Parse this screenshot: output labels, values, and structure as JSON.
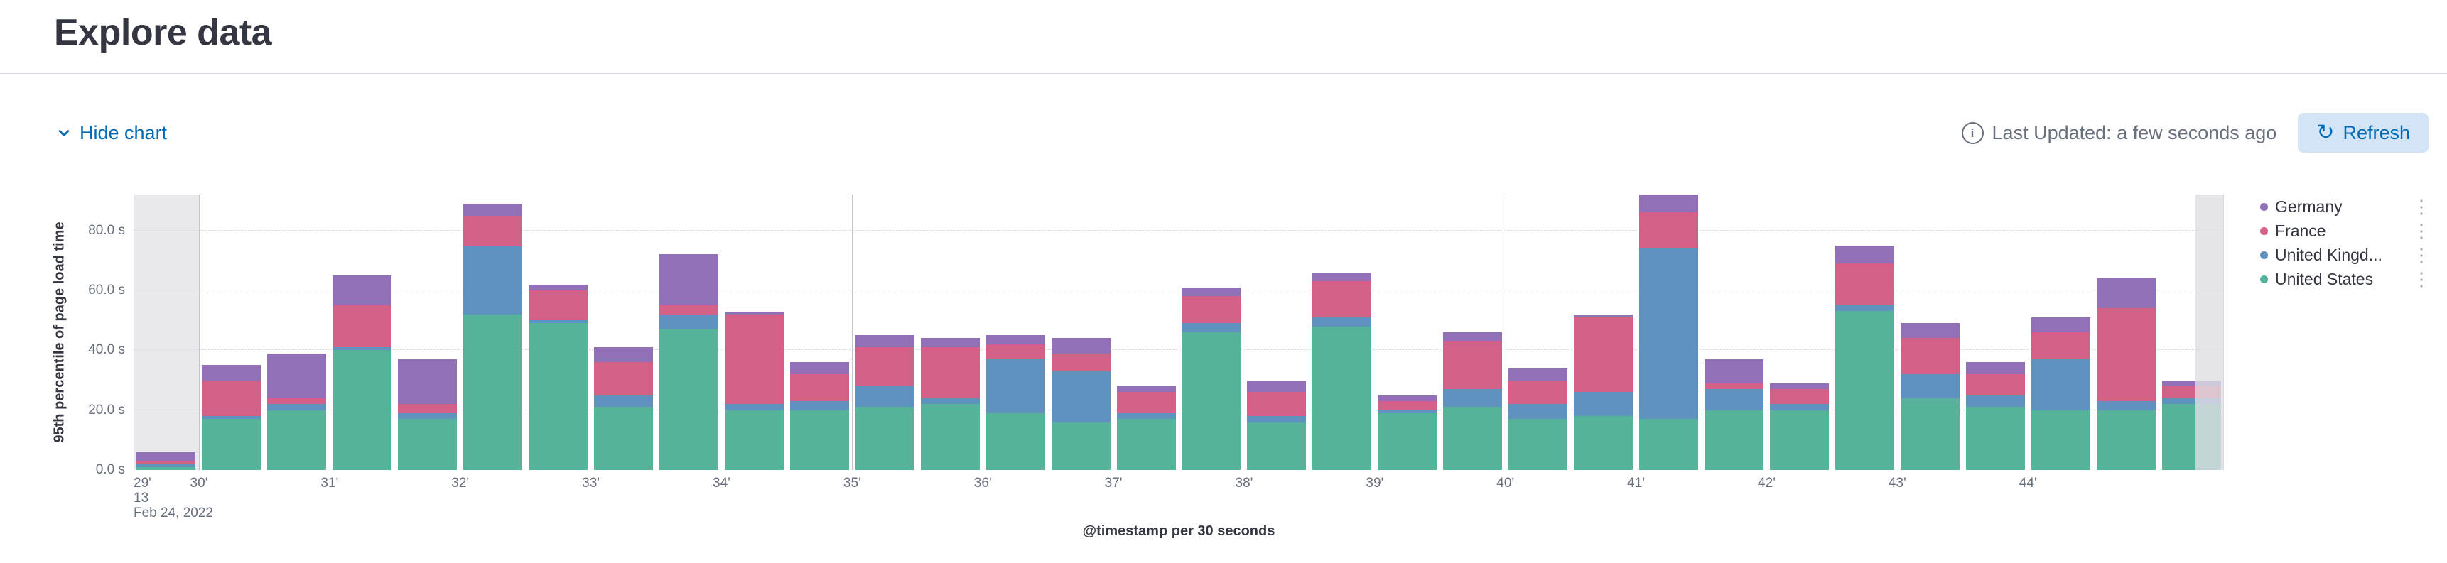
{
  "page": {
    "title": "Explore data"
  },
  "toolbar": {
    "hide_chart_label": "Hide chart",
    "last_updated": "Last Updated: a few seconds ago",
    "refresh_label": "Refresh"
  },
  "icons": {
    "chevron": "chevron-down-icon",
    "info": "info-icon",
    "refresh": "refresh-icon",
    "refresh_glyph": "↻",
    "legend_menu_glyph": "⋮",
    "info_glyph": "i"
  },
  "chart_data": {
    "type": "bar",
    "stacked": true,
    "xlabel": "@timestamp per 30 seconds",
    "ylabel": "95th percentile of page load time",
    "ylim": [
      0,
      92
    ],
    "y_tick_values": [
      0,
      20,
      40,
      60,
      80
    ],
    "y_ticks": [
      "0.0 s",
      "20.0 s",
      "40.0 s",
      "60.0 s",
      "80.0 s"
    ],
    "x": [
      "29:30",
      "30:00",
      "30:30",
      "31:00",
      "31:30",
      "32:00",
      "32:30",
      "33:00",
      "33:30",
      "34:00",
      "34:30",
      "35:00",
      "35:30",
      "36:00",
      "36:30",
      "37:00",
      "37:30",
      "38:00",
      "38:30",
      "39:00",
      "39:30",
      "40:00",
      "40:30",
      "41:00",
      "41:30",
      "42:00",
      "42:30",
      "43:00",
      "43:30",
      "44:00",
      "44:30",
      "45:00"
    ],
    "x_ticks": [
      {
        "i": 0,
        "lines": [
          "29'",
          "13",
          "Feb 24, 2022"
        ]
      },
      {
        "i": 1,
        "lines": [
          "30'"
        ]
      },
      {
        "i": 3,
        "lines": [
          "31'"
        ]
      },
      {
        "i": 5,
        "lines": [
          "32'"
        ]
      },
      {
        "i": 7,
        "lines": [
          "33'"
        ]
      },
      {
        "i": 9,
        "lines": [
          "34'"
        ]
      },
      {
        "i": 11,
        "lines": [
          "35'"
        ]
      },
      {
        "i": 13,
        "lines": [
          "36'"
        ]
      },
      {
        "i": 15,
        "lines": [
          "37'"
        ]
      },
      {
        "i": 17,
        "lines": [
          "38'"
        ]
      },
      {
        "i": 19,
        "lines": [
          "39'"
        ]
      },
      {
        "i": 21,
        "lines": [
          "40'"
        ]
      },
      {
        "i": 23,
        "lines": [
          "41'"
        ]
      },
      {
        "i": 25,
        "lines": [
          "42'"
        ]
      },
      {
        "i": 27,
        "lines": [
          "43'"
        ]
      },
      {
        "i": 29,
        "lines": [
          "44'"
        ]
      }
    ],
    "v_gridline_indices": [
      1,
      11,
      21
    ],
    "partial_buckets": {
      "left_slots": 1,
      "right": true
    },
    "series": [
      {
        "name": "United States",
        "color": "#54B399",
        "values": [
          1,
          17,
          20,
          40,
          17,
          52,
          49,
          21,
          47,
          20,
          20,
          21,
          22,
          19,
          16,
          17,
          46,
          16,
          48,
          19,
          21,
          17,
          18,
          17,
          20,
          20,
          53,
          24,
          21,
          20,
          20,
          22
        ]
      },
      {
        "name": "United Kingdom",
        "color": "#6092C0",
        "values": [
          1,
          1,
          2,
          1,
          2,
          23,
          1,
          4,
          5,
          2,
          3,
          7,
          2,
          18,
          17,
          2,
          3,
          2,
          3,
          1,
          6,
          5,
          8,
          57,
          7,
          2,
          2,
          8,
          4,
          17,
          3,
          2
        ]
      },
      {
        "name": "France",
        "color": "#D36086",
        "values": [
          1,
          12,
          2,
          14,
          3,
          10,
          10,
          11,
          3,
          30,
          9,
          13,
          17,
          5,
          6,
          7,
          9,
          8,
          12,
          3,
          16,
          8,
          25,
          12,
          2,
          5,
          14,
          12,
          7,
          9,
          31,
          4
        ]
      },
      {
        "name": "Germany",
        "color": "#9170B8",
        "values": [
          3,
          5,
          15,
          10,
          15,
          4,
          2,
          5,
          17,
          1,
          4,
          4,
          3,
          3,
          5,
          2,
          3,
          4,
          3,
          2,
          3,
          4,
          1,
          6,
          8,
          2,
          6,
          5,
          4,
          5,
          10,
          2
        ]
      }
    ],
    "legend": [
      {
        "label": "Germany",
        "color": "#9170B8"
      },
      {
        "label": "France",
        "color": "#D36086"
      },
      {
        "label": "United Kingd...",
        "color": "#6092C0"
      },
      {
        "label": "United States",
        "color": "#54B399"
      }
    ],
    "legend_position": "right",
    "grid": true
  }
}
